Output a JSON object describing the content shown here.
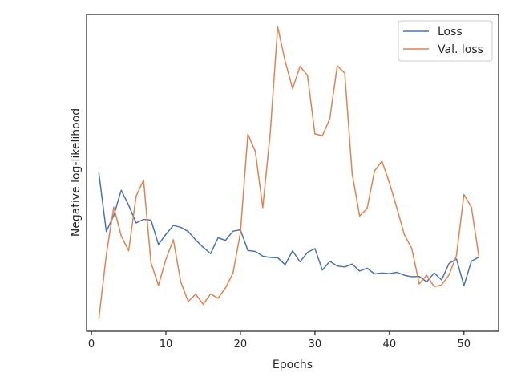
{
  "chart_data": {
    "type": "line",
    "xlabel": "Epochs",
    "ylabel": "Negative log-likelihood",
    "xlim": [
      -0.65,
      54.65
    ],
    "ylim": [
      0,
      1
    ],
    "x_ticks": [
      0,
      10,
      20,
      30,
      40,
      50
    ],
    "grid": false,
    "legend_position": "top-right",
    "series": [
      {
        "name": "Loss",
        "color": "#4c72b0",
        "x": [
          1,
          2,
          3,
          4,
          5,
          6,
          7,
          8,
          9,
          10,
          11,
          12,
          13,
          14,
          15,
          16,
          17,
          18,
          19,
          20,
          21,
          22,
          23,
          24,
          25,
          26,
          27,
          28,
          29,
          30,
          31,
          32,
          33,
          34,
          35,
          36,
          37,
          38,
          39,
          40,
          41,
          42,
          43,
          44,
          45,
          46,
          47,
          48,
          49,
          50,
          51,
          52
        ],
        "y": [
          0.499,
          0.315,
          0.365,
          0.445,
          0.398,
          0.342,
          0.353,
          0.351,
          0.274,
          0.306,
          0.334,
          0.328,
          0.315,
          0.288,
          0.265,
          0.245,
          0.295,
          0.287,
          0.316,
          0.32,
          0.255,
          0.252,
          0.237,
          0.233,
          0.232,
          0.21,
          0.254,
          0.219,
          0.249,
          0.261,
          0.193,
          0.221,
          0.206,
          0.203,
          0.212,
          0.19,
          0.199,
          0.181,
          0.184,
          0.182,
          0.186,
          0.177,
          0.172,
          0.173,
          0.156,
          0.184,
          0.162,
          0.214,
          0.228,
          0.144,
          0.221,
          0.234
        ]
      },
      {
        "name": "Val. loss",
        "color": "#dd8452",
        "x": [
          1,
          2,
          3,
          4,
          5,
          6,
          7,
          8,
          9,
          10,
          11,
          12,
          13,
          14,
          15,
          16,
          17,
          18,
          19,
          20,
          21,
          22,
          23,
          24,
          25,
          26,
          27,
          28,
          29,
          30,
          31,
          32,
          33,
          34,
          35,
          36,
          37,
          38,
          39,
          40,
          41,
          42,
          43,
          44,
          45,
          46,
          47,
          48,
          49,
          50,
          51,
          52
        ],
        "y": [
          0.04,
          0.241,
          0.392,
          0.301,
          0.254,
          0.426,
          0.477,
          0.216,
          0.145,
          0.227,
          0.289,
          0.155,
          0.094,
          0.117,
          0.085,
          0.118,
          0.104,
          0.137,
          0.183,
          0.311,
          0.622,
          0.568,
          0.39,
          0.625,
          0.961,
          0.853,
          0.766,
          0.836,
          0.808,
          0.623,
          0.617,
          0.671,
          0.838,
          0.815,
          0.497,
          0.364,
          0.387,
          0.506,
          0.537,
          0.468,
          0.389,
          0.305,
          0.261,
          0.149,
          0.177,
          0.141,
          0.146,
          0.178,
          0.239,
          0.432,
          0.392,
          0.237
        ]
      }
    ]
  }
}
